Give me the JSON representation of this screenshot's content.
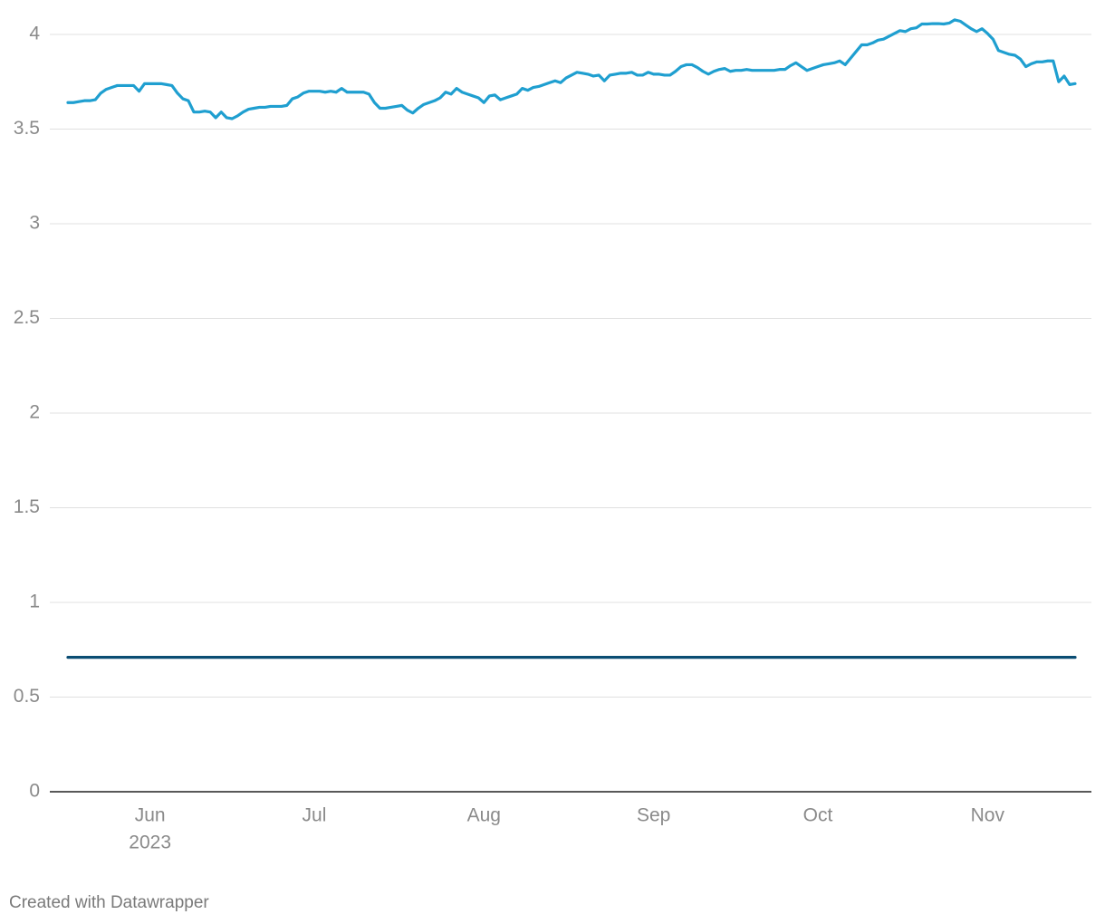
{
  "chart_data": {
    "type": "line",
    "categories": [
      null,
      null,
      null,
      null,
      null,
      null,
      null,
      null,
      null,
      null,
      null,
      null,
      null,
      null,
      null,
      "Jun",
      null,
      null,
      null,
      null,
      null,
      null,
      null,
      null,
      null,
      null,
      null,
      null,
      null,
      null,
      null,
      null,
      null,
      null,
      null,
      null,
      null,
      null,
      null,
      null,
      null,
      null,
      null,
      null,
      null,
      "Jul",
      null,
      null,
      null,
      null,
      null,
      null,
      null,
      null,
      null,
      null,
      null,
      null,
      null,
      null,
      null,
      null,
      null,
      null,
      null,
      null,
      null,
      null,
      null,
      null,
      null,
      null,
      null,
      null,
      null,
      null,
      "Aug",
      null,
      null,
      null,
      null,
      null,
      null,
      null,
      null,
      null,
      null,
      null,
      null,
      null,
      null,
      null,
      null,
      null,
      null,
      null,
      null,
      null,
      null,
      null,
      null,
      null,
      null,
      null,
      null,
      null,
      null,
      "Sep",
      null,
      null,
      null,
      null,
      null,
      null,
      null,
      null,
      null,
      null,
      null,
      null,
      null,
      null,
      null,
      null,
      null,
      null,
      null,
      null,
      null,
      null,
      null,
      null,
      null,
      null,
      null,
      null,
      null,
      "Oct",
      null,
      null,
      null,
      null,
      null,
      null,
      null,
      null,
      null,
      null,
      null,
      null,
      null,
      null,
      null,
      null,
      null,
      null,
      null,
      null,
      null,
      null,
      null,
      null,
      null,
      null,
      null,
      null,
      null,
      null,
      "Nov",
      null,
      null,
      null,
      null,
      null,
      null,
      null,
      null,
      null,
      null,
      null,
      null,
      null,
      null,
      null,
      null
    ],
    "x_year_label": "2023",
    "series": [
      {
        "color": "#1f9fd0",
        "values": [
          3.64,
          3.64,
          3.645,
          3.65,
          3.65,
          3.655,
          3.69,
          3.71,
          3.72,
          3.73,
          3.73,
          3.73,
          3.73,
          3.7,
          3.74,
          3.74,
          3.74,
          3.74,
          3.735,
          3.73,
          3.69,
          3.66,
          3.65,
          3.59,
          3.59,
          3.595,
          3.59,
          3.56,
          3.59,
          3.56,
          3.555,
          3.57,
          3.59,
          3.605,
          3.61,
          3.615,
          3.615,
          3.62,
          3.62,
          3.62,
          3.625,
          3.66,
          3.67,
          3.69,
          3.7,
          3.7,
          3.7,
          3.695,
          3.7,
          3.695,
          3.715,
          3.695,
          3.695,
          3.695,
          3.695,
          3.685,
          3.64,
          3.61,
          3.61,
          3.615,
          3.62,
          3.625,
          3.6,
          3.585,
          3.61,
          3.63,
          3.64,
          3.65,
          3.665,
          3.695,
          3.685,
          3.715,
          3.695,
          3.685,
          3.675,
          3.665,
          3.64,
          3.675,
          3.68,
          3.655,
          3.665,
          3.675,
          3.685,
          3.715,
          3.705,
          3.72,
          3.725,
          3.735,
          3.745,
          3.755,
          3.745,
          3.77,
          3.785,
          3.8,
          3.795,
          3.79,
          3.78,
          3.785,
          3.755,
          3.785,
          3.79,
          3.795,
          3.795,
          3.8,
          3.785,
          3.785,
          3.8,
          3.79,
          3.79,
          3.785,
          3.785,
          3.805,
          3.83,
          3.84,
          3.84,
          3.825,
          3.805,
          3.79,
          3.805,
          3.815,
          3.82,
          3.805,
          3.81,
          3.81,
          3.815,
          3.81,
          3.81,
          3.81,
          3.81,
          3.81,
          3.815,
          3.815,
          3.835,
          3.85,
          3.83,
          3.81,
          3.82,
          3.83,
          3.84,
          3.845,
          3.85,
          3.86,
          3.84,
          3.875,
          3.91,
          3.945,
          3.945,
          3.955,
          3.97,
          3.975,
          3.99,
          4.005,
          4.02,
          4.015,
          4.03,
          4.035,
          4.055,
          4.055,
          4.057,
          4.057,
          4.055,
          4.06,
          4.077,
          4.07,
          4.05,
          4.03,
          4.015,
          4.03,
          4.005,
          3.975,
          3.915,
          3.905,
          3.895,
          3.89,
          3.87,
          3.83,
          3.845,
          3.855,
          3.855,
          3.86,
          3.86,
          3.75,
          3.78,
          3.735,
          3.74
        ]
      },
      {
        "color": "#0a4d73",
        "values": [
          0.71,
          0.71,
          0.71,
          0.71,
          0.71,
          0.71,
          0.71,
          0.71,
          0.71,
          0.71,
          0.71,
          0.71,
          0.71,
          0.71,
          0.71,
          0.71,
          0.71,
          0.71,
          0.71,
          0.71,
          0.71,
          0.71,
          0.71,
          0.71,
          0.71,
          0.71,
          0.71,
          0.71,
          0.71,
          0.71,
          0.71,
          0.71,
          0.71,
          0.71,
          0.71,
          0.71,
          0.71,
          0.71,
          0.71,
          0.71,
          0.71,
          0.71,
          0.71,
          0.71,
          0.71,
          0.71,
          0.71,
          0.71,
          0.71,
          0.71,
          0.71,
          0.71,
          0.71,
          0.71,
          0.71,
          0.71,
          0.71,
          0.71,
          0.71,
          0.71,
          0.71,
          0.71,
          0.71,
          0.71,
          0.71,
          0.71,
          0.71,
          0.71,
          0.71,
          0.71,
          0.71,
          0.71,
          0.71,
          0.71,
          0.71,
          0.71,
          0.71,
          0.71,
          0.71,
          0.71,
          0.71,
          0.71,
          0.71,
          0.71,
          0.71,
          0.71,
          0.71,
          0.71,
          0.71,
          0.71,
          0.71,
          0.71,
          0.71,
          0.71,
          0.71,
          0.71,
          0.71,
          0.71,
          0.71,
          0.71,
          0.71,
          0.71,
          0.71,
          0.71,
          0.71,
          0.71,
          0.71,
          0.71,
          0.71,
          0.71,
          0.71,
          0.71,
          0.71,
          0.71,
          0.71,
          0.71,
          0.71,
          0.71,
          0.71,
          0.71,
          0.71,
          0.71,
          0.71,
          0.71,
          0.71,
          0.71,
          0.71,
          0.71,
          0.71,
          0.71,
          0.71,
          0.71,
          0.71,
          0.71,
          0.71,
          0.71,
          0.71,
          0.71,
          0.71,
          0.71,
          0.71,
          0.71,
          0.71,
          0.71,
          0.71,
          0.71,
          0.71,
          0.71,
          0.71,
          0.71,
          0.71,
          0.71,
          0.71,
          0.71,
          0.71,
          0.71,
          0.71,
          0.71,
          0.71,
          0.71,
          0.71,
          0.71,
          0.71,
          0.71,
          0.71,
          0.71,
          0.71,
          0.71,
          0.71,
          0.71,
          0.71,
          0.71,
          0.71,
          0.71,
          0.71,
          0.71,
          0.71,
          0.71,
          0.71,
          0.71,
          0.71,
          0.71,
          0.71,
          0.71,
          0.71
        ]
      }
    ],
    "ylim": [
      0,
      4
    ],
    "yticks": [
      0,
      0.5,
      1,
      1.5,
      2,
      2.5,
      3,
      3.5,
      4
    ],
    "grid": true,
    "footer": "Created with Datawrapper"
  }
}
